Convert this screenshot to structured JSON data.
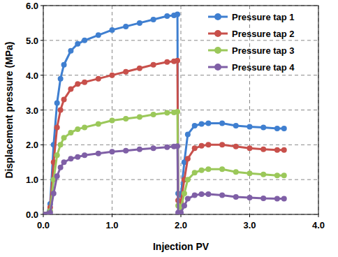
{
  "chart_data": {
    "type": "line",
    "x_label": "Injection PV",
    "y_label": "Displacement pressure (MPa)",
    "x": [
      0,
      0.05,
      0.1,
      0.15,
      0.2,
      0.25,
      0.3,
      0.4,
      0.5,
      0.6,
      0.8,
      1.0,
      1.2,
      1.4,
      1.6,
      1.8,
      1.9,
      1.95,
      1.96,
      2.0,
      2.05,
      2.1,
      2.2,
      2.3,
      2.4,
      2.6,
      2.8,
      3.0,
      3.2,
      3.4,
      3.5
    ],
    "series": [
      {
        "name": "Pressure tap 1",
        "color": "#3f7fd0",
        "marker": "circle",
        "values": [
          0,
          0,
          0.3,
          2.0,
          3.2,
          3.9,
          4.3,
          4.7,
          4.9,
          5.0,
          5.15,
          5.3,
          5.4,
          5.5,
          5.6,
          5.7,
          5.72,
          5.75,
          0.6,
          0.55,
          1.5,
          2.3,
          2.55,
          2.6,
          2.62,
          2.62,
          2.55,
          2.52,
          2.5,
          2.47,
          2.47
        ]
      },
      {
        "name": "Pressure tap 2",
        "color": "#c8504b",
        "marker": "circle",
        "values": [
          0,
          0,
          0.2,
          1.5,
          2.5,
          3.0,
          3.3,
          3.6,
          3.75,
          3.8,
          3.9,
          4.0,
          4.1,
          4.2,
          4.3,
          4.38,
          4.4,
          4.42,
          0.4,
          0.35,
          1.0,
          1.6,
          1.9,
          1.97,
          2.0,
          2.0,
          1.95,
          1.9,
          1.87,
          1.85,
          1.85
        ]
      },
      {
        "name": "Pressure tap 3",
        "color": "#9bc85a",
        "marker": "circle",
        "values": [
          0,
          0,
          0.1,
          1.0,
          1.7,
          2.0,
          2.2,
          2.35,
          2.45,
          2.5,
          2.6,
          2.7,
          2.75,
          2.8,
          2.87,
          2.92,
          2.93,
          2.95,
          0.25,
          0.2,
          0.6,
          1.0,
          1.2,
          1.27,
          1.3,
          1.3,
          1.22,
          1.18,
          1.15,
          1.12,
          1.12
        ]
      },
      {
        "name": "Pressure tap 4",
        "color": "#7f5fa6",
        "marker": "circle",
        "values": [
          0,
          0,
          0.05,
          0.6,
          1.1,
          1.35,
          1.5,
          1.6,
          1.65,
          1.7,
          1.75,
          1.8,
          1.83,
          1.87,
          1.9,
          1.93,
          1.95,
          1.96,
          0.05,
          0.05,
          0.25,
          0.45,
          0.55,
          0.58,
          0.58,
          0.55,
          0.5,
          0.48,
          0.46,
          0.45,
          0.45
        ]
      }
    ],
    "xlim": [
      0,
      4
    ],
    "ylim": [
      0,
      6
    ],
    "xticks": [
      {
        "value": 0,
        "label": "0.0"
      },
      {
        "value": 1,
        "label": "1.0"
      },
      {
        "value": 2,
        "label": "2.0"
      },
      {
        "value": 3,
        "label": "3.0"
      },
      {
        "value": 4,
        "label": "4.0"
      }
    ],
    "yticks": [
      {
        "value": 0,
        "label": "0.0"
      },
      {
        "value": 1,
        "label": "1.0"
      },
      {
        "value": 2,
        "label": "2.0"
      },
      {
        "value": 3,
        "label": "3.0"
      },
      {
        "value": 4,
        "label": "4.0"
      },
      {
        "value": 5,
        "label": "5.0"
      },
      {
        "value": 6,
        "label": "6.0"
      }
    ],
    "grid": true,
    "legend": "upper right"
  }
}
